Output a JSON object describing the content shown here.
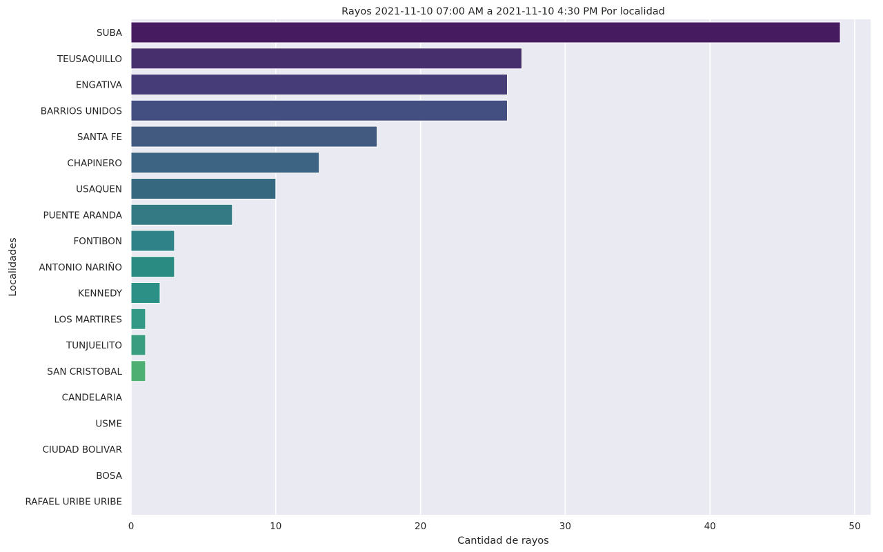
{
  "chart_data": {
    "type": "bar",
    "orientation": "horizontal",
    "title": "Rayos 2021-11-10 07:00 AM a 2021-11-10 4:30 PM Por localidad",
    "xlabel": "Cantidad de rayos",
    "ylabel": "Localidades",
    "xlim": [
      0,
      51
    ],
    "xticks": [
      0,
      10,
      20,
      30,
      40,
      50
    ],
    "grid": true,
    "categories": [
      "SUBA",
      "TEUSAQUILLO",
      "ENGATIVA",
      "BARRIOS UNIDOS",
      "SANTA FE",
      "CHAPINERO",
      "USAQUEN",
      "PUENTE ARANDA",
      "FONTIBON",
      "ANTONIO NARIÑO",
      "KENNEDY",
      "LOS MARTIRES",
      "TUNJUELITO",
      "SAN CRISTOBAL",
      "CANDELARIA",
      "USME",
      "CIUDAD BOLIVAR",
      "BOSA",
      "RAFAEL URIBE URIBE"
    ],
    "values": [
      49,
      27,
      26,
      26,
      17,
      13,
      10,
      7,
      3,
      3,
      2,
      1,
      1,
      1,
      0,
      0,
      0,
      0,
      0
    ],
    "colors": [
      "#471b5f",
      "#472f6d",
      "#463d78",
      "#434f80",
      "#425a80",
      "#3e6483",
      "#36687f",
      "#337a85",
      "#2f8287",
      "#2a8b83",
      "#2c9086",
      "#329986",
      "#3a9d7f",
      "#4eaf73",
      "#5ab968",
      "#6cc25e",
      "#89cd54",
      "#a8d844",
      "#cde036"
    ],
    "background": "#eaeaf2",
    "grid_color": "#ffffff"
  }
}
